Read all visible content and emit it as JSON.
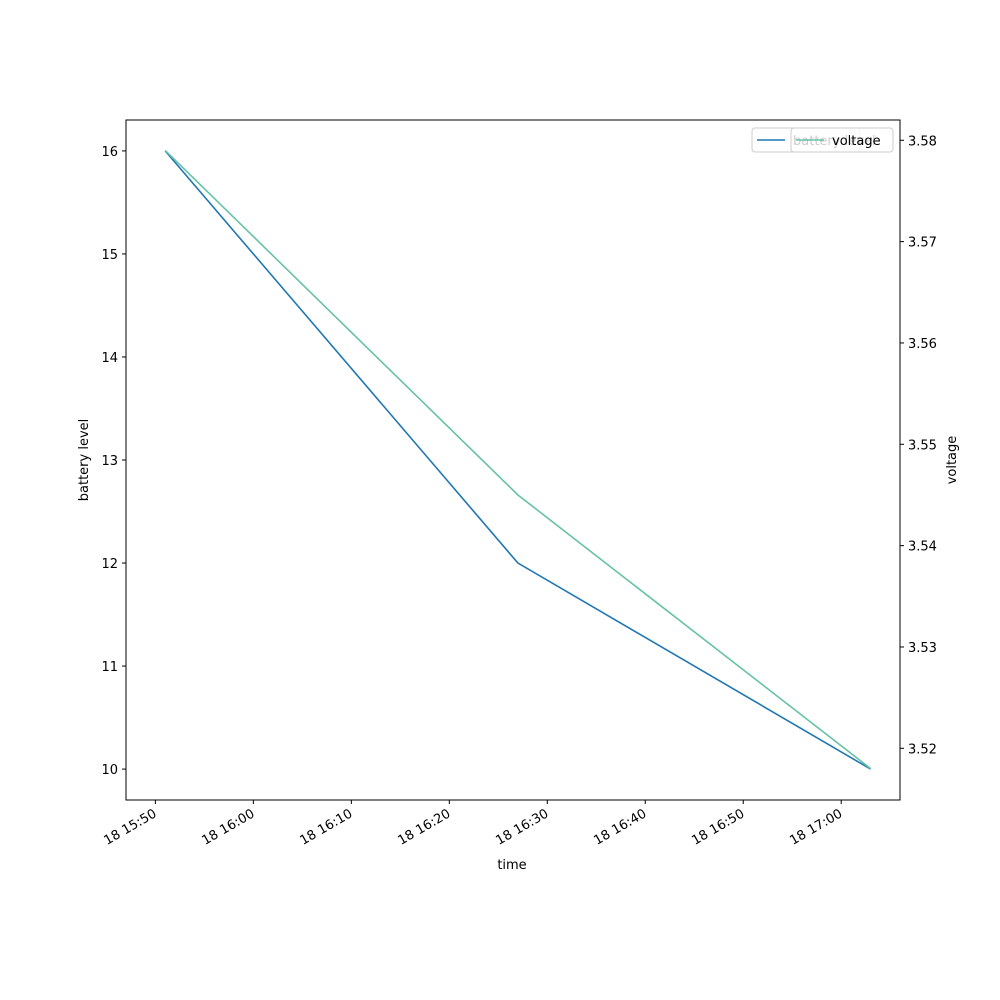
{
  "chart_data": {
    "type": "line",
    "x_label": "time",
    "y_label": "battery level",
    "y2_label": "voltage",
    "x": [
      "18 15:51",
      "18 16:27",
      "18 17:03"
    ],
    "series": [
      {
        "name": "battery level",
        "color": "#1f77b4",
        "values": [
          16,
          12,
          10
        ]
      },
      {
        "name": "voltage",
        "color": "#66c2a5",
        "values": [
          3.579,
          3.545,
          3.518
        ],
        "axis": "y2"
      }
    ],
    "xlim": [
      "18 15:47",
      "18 17:06"
    ],
    "xticks": [
      "18 15:50",
      "18 16:00",
      "18 16:10",
      "18 16:20",
      "18 16:30",
      "18 16:40",
      "18 16:50",
      "18 17:00"
    ],
    "ylim": [
      9.7,
      16.3
    ],
    "yticks": [
      10,
      11,
      12,
      13,
      14,
      15,
      16
    ],
    "y2lim": [
      3.5149,
      3.582
    ],
    "y2ticks": [
      3.52,
      3.53,
      3.54,
      3.55,
      3.56,
      3.57,
      3.58
    ],
    "legend": "upper right"
  }
}
